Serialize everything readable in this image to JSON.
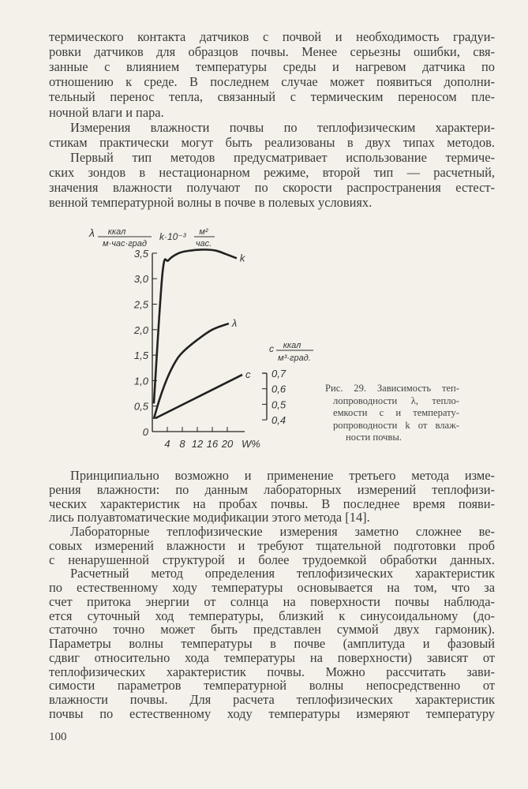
{
  "top_text": [
    {
      "t": "термического контакта датчиков с почвой и необходимость градуи-",
      "c": ""
    },
    {
      "t": "ровки датчиков для образцов почвы. Менее серьезны ошибки, свя-",
      "c": ""
    },
    {
      "t": "занные с влиянием температуры среды и нагревом датчика по",
      "c": ""
    },
    {
      "t": "отношению к среде. В последнем случае может появиться дополни-",
      "c": ""
    },
    {
      "t": "тельный перенос тепла, связанный с термическим переносом пле-",
      "c": ""
    },
    {
      "t": "ночной влаги и пара.",
      "c": "last"
    },
    {
      "t": "Измерения влажности почвы по теплофизическим характери-",
      "c": "ind"
    },
    {
      "t": "стикам практически могут быть реализованы в двух типах методов.",
      "c": ""
    },
    {
      "t": "Первый тип методов предусматривает использование термиче-",
      "c": "ind"
    },
    {
      "t": "ских зондов в нестационарном режиме, второй тип — расчетный,",
      "c": ""
    },
    {
      "t": "значения влажности получают по скорости распространения естест-",
      "c": ""
    },
    {
      "t": "венной температурной волны в почве в полевых условиях.",
      "c": "last"
    }
  ],
  "bottom_text": [
    {
      "t": "Принципиально возможно и применение третьего метода изме-",
      "c": "ind"
    },
    {
      "t": "рения влажности: по данным лабораторных измерений теплофизи-",
      "c": ""
    },
    {
      "t": "ческих характеристик на пробах почвы. В последнее время появи-",
      "c": ""
    },
    {
      "t": "лись полуавтоматические модификации этого метода [14].",
      "c": "last"
    },
    {
      "t": "Лабораторные теплофизические измерения заметно сложнее ве-",
      "c": "ind"
    },
    {
      "t": "совых измерений влажности и требуют тщательной подготовки проб",
      "c": ""
    },
    {
      "t": "с ненарушенной структурой и более трудоемкой обработки данных.",
      "c": ""
    },
    {
      "t": "Расчетный метод определения теплофизических характеристик",
      "c": "ind"
    },
    {
      "t": "по естественному ходу температуры основывается на том, что за",
      "c": ""
    },
    {
      "t": "счет притока энергии от солнца на поверхности почвы наблюда-",
      "c": ""
    },
    {
      "t": "ется суточный ход температуры, близкий к синусоидальному (до-",
      "c": ""
    },
    {
      "t": "статочно точно может быть представлен суммой двух гармоник).",
      "c": ""
    },
    {
      "t": "Параметры волны температуры в почве (амплитуда и фазовый",
      "c": ""
    },
    {
      "t": "сдвиг относительно хода температуры на поверхности) зависят от",
      "c": ""
    },
    {
      "t": "теплофизических характеристик почвы. Можно рассчитать зави-",
      "c": ""
    },
    {
      "t": "симости параметров температурной волны непосредственно от",
      "c": ""
    },
    {
      "t": "влажности почвы. Для расчета теплофизических характеристик",
      "c": ""
    },
    {
      "t": "почвы по естественному ходу температуры измеряют температуру",
      "c": ""
    }
  ],
  "caption": [
    "Рис. 29. Зависимость теп-",
    "лопроводности λ, тепло-",
    "емкости c и температу-",
    "ропроводности k от влаж-",
    "ности почвы."
  ],
  "page_number": "100",
  "chart_data": {
    "type": "line",
    "xlabel": "W%",
    "x_ticks": [
      "4",
      "8",
      "12",
      "16",
      "20"
    ],
    "left_axis": {
      "label_symbol": "λ",
      "label_unit_num": "ккал",
      "label_unit_den": "м·час·град",
      "label2": "k·10⁻³",
      "label2_unit_num": "м²",
      "label2_unit_den": "час.",
      "ylim": [
        0,
        3.5
      ],
      "ticks": [
        "0",
        "0,5",
        "1,0",
        "1,5",
        "2,0",
        "2,5",
        "3,0",
        "3,5"
      ]
    },
    "right_axis": {
      "label_symbol": "c",
      "label_unit_num": "ккал",
      "label_unit_den": "м³·град.",
      "ticks": [
        "0,4",
        "0,5",
        "0,6",
        "0,7"
      ]
    },
    "series": [
      {
        "name": "k",
        "axis": "left",
        "x": [
          0.4,
          2.7,
          4.3,
          7,
          10,
          14,
          17,
          19.7,
          22.5
        ],
        "y": [
          0.55,
          3.1,
          3.36,
          3.5,
          3.55,
          3.57,
          3.55,
          3.48,
          3.4
        ]
      },
      {
        "name": "λ",
        "axis": "left",
        "x": [
          0.4,
          2,
          4,
          6,
          8,
          12,
          16,
          20.4
        ],
        "y": [
          0.25,
          0.65,
          1.05,
          1.35,
          1.55,
          1.8,
          2.0,
          2.12
        ]
      },
      {
        "name": "c",
        "axis": "right",
        "x": [
          0.8,
          24
        ],
        "y": [
          0.41,
          0.69
        ]
      }
    ]
  }
}
